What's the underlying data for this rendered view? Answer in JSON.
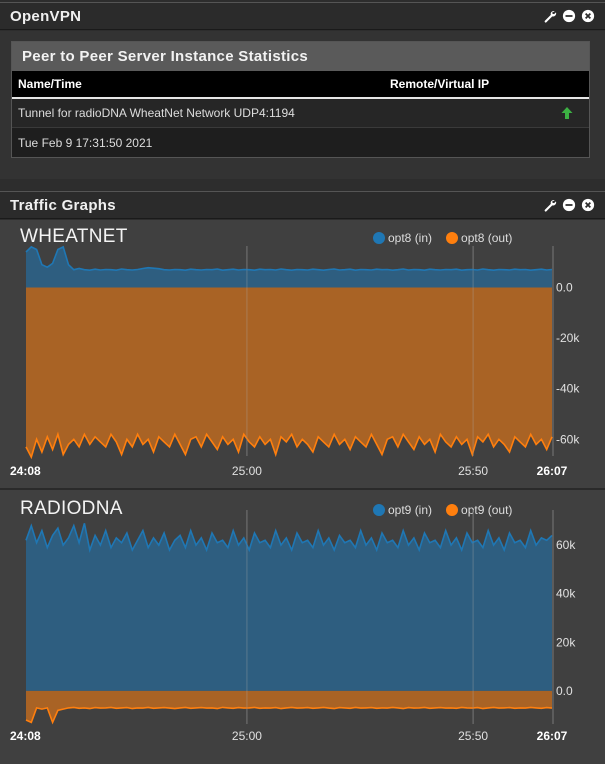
{
  "openvpn_panel": {
    "title": "OpenVPN",
    "stats_title": "Peer to Peer Server Instance Statistics",
    "columns": [
      "Name/Time",
      "Remote/Virtual IP"
    ],
    "tunnel_name": "Tunnel for radioDNA WheatNet Network UDP4:1194",
    "connected_time": "Tue Feb 9 17:31:50 2021",
    "status_icon": "arrow-up-icon",
    "status_color": "#3cb043"
  },
  "traffic_panel": {
    "title": "Traffic Graphs"
  },
  "colors": {
    "in": "#1f77b4",
    "out": "#ff7f0e",
    "panel_bg": "#404040"
  },
  "chart_data": [
    {
      "type": "area",
      "title": "WHEATNET",
      "series": [
        {
          "name": "opt8 (in)",
          "color": "#1f77b4",
          "values": [
            14000,
            16000,
            15000,
            9000,
            8000,
            9500,
            15000,
            16000,
            9000,
            7000,
            7500,
            7000,
            6800,
            7200,
            6900,
            7100,
            7000,
            6800,
            7300,
            7000,
            6900,
            7100,
            7500,
            7800,
            7600,
            7400,
            7000,
            6900,
            7100,
            7000,
            6800,
            7200,
            7000,
            6900,
            7100,
            7000,
            7300,
            6800,
            7000,
            7200,
            6900,
            7100,
            7000,
            6800,
            7200,
            7000,
            7100,
            6900,
            7300,
            7000,
            6800,
            7100,
            7000,
            6900,
            7200,
            7000,
            6800,
            7100,
            7300,
            6900,
            7000,
            7200,
            6800,
            7100,
            7000,
            6900,
            7200,
            7000,
            7100,
            6800,
            7000,
            7300,
            6900,
            7100,
            7000,
            6800,
            7200,
            7000,
            6900,
            7100,
            7000,
            7200,
            6800,
            7000,
            7100,
            6900,
            7300,
            7000,
            6800,
            7100,
            7000,
            6900,
            7200,
            7000,
            7100,
            6800,
            7000,
            7200,
            6900,
            7100
          ]
        },
        {
          "name": "opt8 (out)",
          "color": "#ff7f0e",
          "values": [
            -63000,
            -67000,
            -60000,
            -65000,
            -59000,
            -64000,
            -58000,
            -66000,
            -62000,
            -60000,
            -63000,
            -58000,
            -62000,
            -59000,
            -61000,
            -63000,
            -58000,
            -61000,
            -66000,
            -60000,
            -63000,
            -58000,
            -62000,
            -60000,
            -65000,
            -59000,
            -61000,
            -63000,
            -58000,
            -62000,
            -66000,
            -60000,
            -59000,
            -63000,
            -58000,
            -61000,
            -64000,
            -59000,
            -62000,
            -60000,
            -65000,
            -58000,
            -61000,
            -63000,
            -59000,
            -62000,
            -60000,
            -66000,
            -59000,
            -61000,
            -58000,
            -63000,
            -60000,
            -62000,
            -65000,
            -59000,
            -61000,
            -63000,
            -58000,
            -62000,
            -60000,
            -64000,
            -59000,
            -61000,
            -63000,
            -58000,
            -62000,
            -66000,
            -60000,
            -59000,
            -63000,
            -58000,
            -61000,
            -64000,
            -59000,
            -62000,
            -60000,
            -65000,
            -58000,
            -61000,
            -63000,
            -59000,
            -62000,
            -60000,
            -66000,
            -59000,
            -61000,
            -58000,
            -63000,
            -60000,
            -62000,
            -65000,
            -59000,
            -61000,
            -63000,
            -58000,
            -62000,
            -60000,
            -64000,
            -59000
          ]
        }
      ],
      "ylim": [
        -65000,
        14000
      ],
      "y_ticks": [
        0,
        -20000,
        -40000,
        -60000
      ],
      "y_tick_labels": [
        "0.0",
        "-20k",
        "-40k",
        "-60k"
      ],
      "x_tick_labels": [
        "24:08",
        "25:00",
        "25:50",
        "26:07"
      ],
      "x_tick_positions": [
        0,
        0.42,
        0.85,
        1.0
      ],
      "legend": "top-right"
    },
    {
      "type": "area",
      "title": "RADIODNA",
      "series": [
        {
          "name": "opt9 (in)",
          "color": "#1f77b4",
          "values": [
            62000,
            68000,
            61000,
            66000,
            59000,
            64000,
            67000,
            60000,
            63000,
            68000,
            61000,
            69000,
            58000,
            64000,
            60000,
            66000,
            59000,
            63000,
            61000,
            65000,
            58000,
            62000,
            66000,
            59000,
            63000,
            60000,
            65000,
            58000,
            62000,
            64000,
            59000,
            66000,
            60000,
            63000,
            58000,
            65000,
            61000,
            62000,
            59000,
            66000,
            60000,
            63000,
            58000,
            65000,
            61000,
            62000,
            59000,
            66000,
            60000,
            63000,
            58000,
            65000,
            61000,
            62000,
            59000,
            66000,
            60000,
            63000,
            58000,
            64000,
            61000,
            62000,
            59000,
            66000,
            60000,
            63000,
            58000,
            65000,
            61000,
            62000,
            59000,
            66000,
            60000,
            63000,
            58000,
            65000,
            61000,
            62000,
            59000,
            66000,
            60000,
            63000,
            58000,
            65000,
            61000,
            62000,
            59000,
            66000,
            60000,
            63000,
            58000,
            65000,
            61000,
            62000,
            59000,
            66000,
            60000,
            63000,
            62000,
            64000
          ]
        },
        {
          "name": "opt9 (out)",
          "color": "#ff7f0e",
          "values": [
            -12000,
            -13000,
            -7000,
            -7500,
            -7000,
            -13000,
            -8000,
            -7500,
            -7000,
            -6800,
            -7200,
            -7000,
            -7300,
            -6900,
            -7100,
            -7000,
            -6800,
            -7200,
            -7000,
            -6900,
            -7300,
            -7000,
            -7100,
            -6800,
            -7200,
            -7000,
            -6900,
            -7100,
            -7300,
            -7000,
            -6800,
            -7200,
            -7000,
            -6900,
            -7100,
            -7000,
            -7300,
            -6800,
            -7000,
            -7200,
            -6900,
            -7100,
            -7000,
            -6800,
            -7200,
            -7000,
            -7100,
            -6900,
            -7300,
            -7000,
            -6800,
            -7100,
            -7000,
            -6900,
            -7200,
            -7000,
            -6800,
            -7100,
            -7300,
            -6900,
            -7000,
            -7200,
            -6800,
            -7100,
            -7000,
            -6900,
            -7200,
            -7000,
            -7100,
            -6800,
            -7000,
            -7300,
            -6900,
            -7100,
            -7000,
            -6800,
            -7200,
            -7000,
            -6900,
            -7100,
            -7000,
            -7200,
            -6800,
            -7000,
            -7100,
            -6900,
            -7300,
            -7000,
            -6800,
            -7100,
            -7000,
            -6900,
            -7200,
            -7000,
            -7100,
            -6800,
            -7000,
            -7200,
            -6900,
            -7100
          ]
        }
      ],
      "ylim": [
        -12000,
        72000
      ],
      "y_ticks": [
        60000,
        40000,
        20000,
        0
      ],
      "y_tick_labels": [
        "60k",
        "40k",
        "20k",
        "0.0"
      ],
      "x_tick_labels": [
        "24:08",
        "25:00",
        "25:50",
        "26:07"
      ],
      "x_tick_positions": [
        0,
        0.42,
        0.85,
        1.0
      ],
      "legend": "top-right"
    }
  ]
}
